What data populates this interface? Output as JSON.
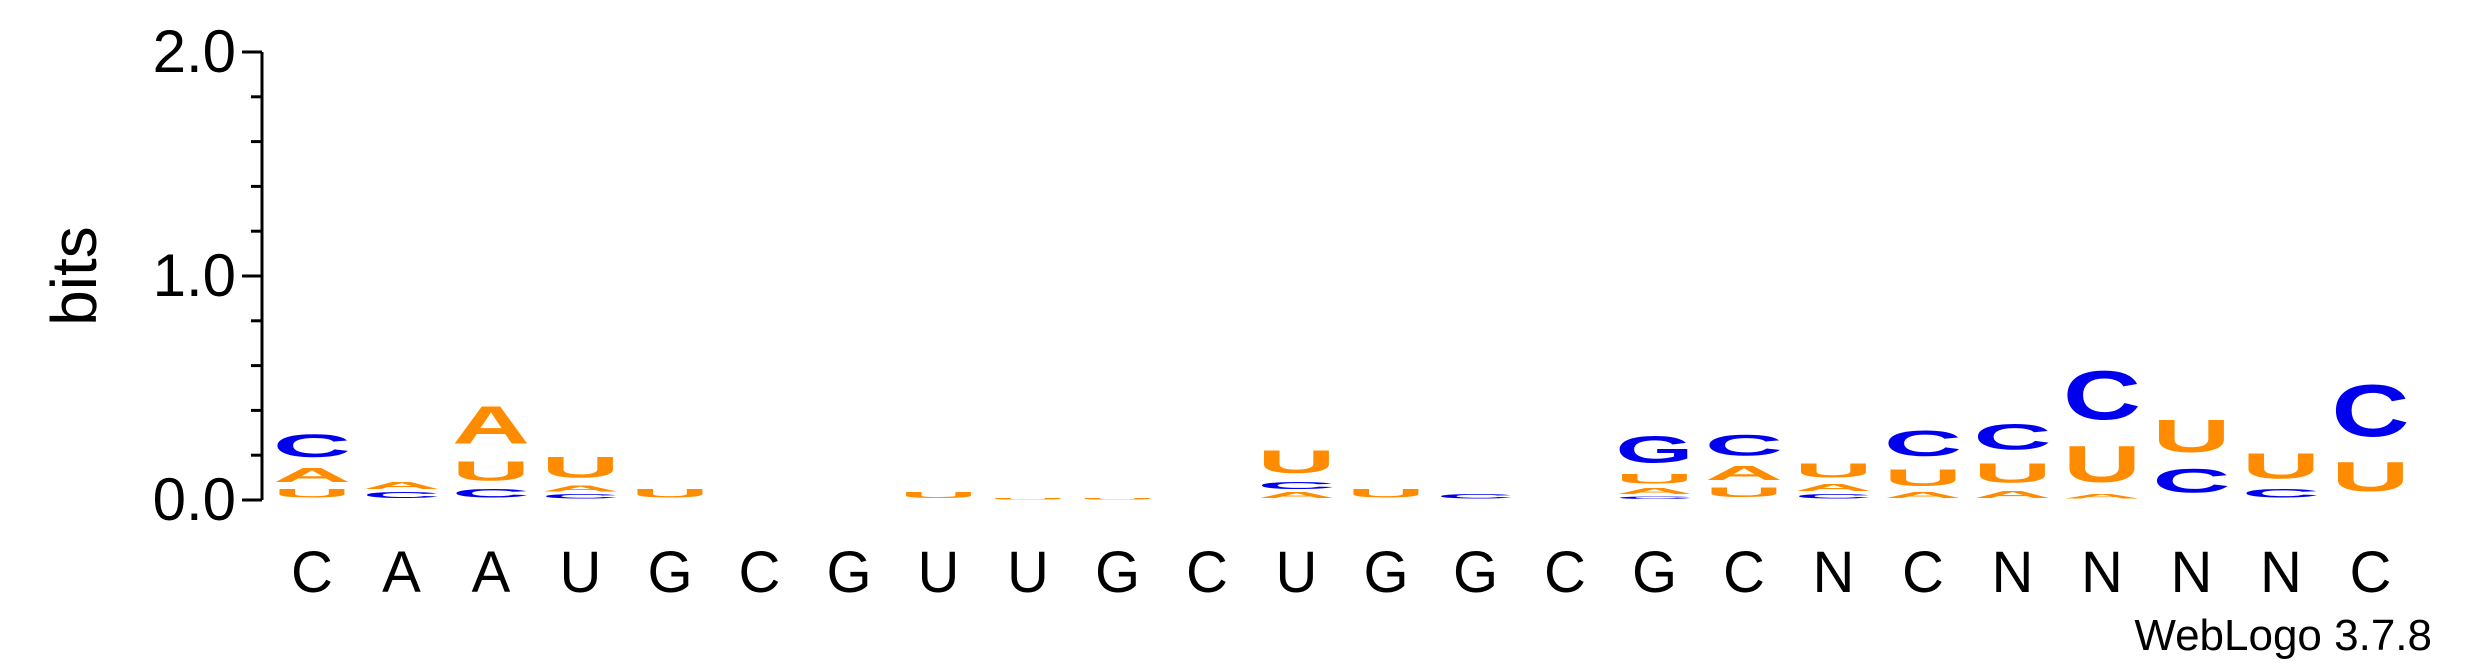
{
  "chart_data": {
    "type": "sequence-logo",
    "ylabel": "bits",
    "ylim": [
      0,
      2.0
    ],
    "y_ticks": [
      "0.0",
      "1.0",
      "2.0"
    ],
    "colors": {
      "A": "#ff8c00",
      "U": "#ff8c00",
      "C": "#0000ee",
      "G": "#0000ee"
    },
    "credit": "WebLogo 3.7.8",
    "positions": [
      {
        "label": "C",
        "stack": [
          [
            "U",
            0.06
          ],
          [
            "A",
            0.1
          ],
          [
            "C",
            0.16
          ]
        ]
      },
      {
        "label": "A",
        "stack": [
          [
            "C",
            0.04
          ],
          [
            "A",
            0.05
          ]
        ]
      },
      {
        "label": "A",
        "stack": [
          [
            "C",
            0.06
          ],
          [
            "U",
            0.14
          ],
          [
            "A",
            0.27
          ]
        ]
      },
      {
        "label": "U",
        "stack": [
          [
            "C",
            0.03
          ],
          [
            "A",
            0.04
          ],
          [
            "U",
            0.15
          ]
        ]
      },
      {
        "label": "G",
        "stack": [
          [
            "U",
            0.06
          ]
        ]
      },
      {
        "label": "C",
        "stack": []
      },
      {
        "label": "G",
        "stack": []
      },
      {
        "label": "U",
        "stack": [
          [
            "U",
            0.04
          ]
        ]
      },
      {
        "label": "U",
        "stack": [
          [
            "U",
            0.01
          ]
        ]
      },
      {
        "label": "G",
        "stack": [
          [
            "U",
            0.01
          ]
        ]
      },
      {
        "label": "C",
        "stack": []
      },
      {
        "label": "U",
        "stack": [
          [
            "A",
            0.04
          ],
          [
            "C",
            0.05
          ],
          [
            "U",
            0.16
          ]
        ]
      },
      {
        "label": "G",
        "stack": [
          [
            "U",
            0.06
          ]
        ]
      },
      {
        "label": "G",
        "stack": [
          [
            "C",
            0.03
          ]
        ]
      },
      {
        "label": "C",
        "stack": []
      },
      {
        "label": "G",
        "stack": [
          [
            "C",
            0.02
          ],
          [
            "A",
            0.04
          ],
          [
            "U",
            0.07
          ],
          [
            "G",
            0.19
          ]
        ]
      },
      {
        "label": "C",
        "stack": [
          [
            "U",
            0.07
          ],
          [
            "A",
            0.1
          ],
          [
            "C",
            0.15
          ]
        ]
      },
      {
        "label": "N",
        "stack": [
          [
            "C",
            0.03
          ],
          [
            "A",
            0.05
          ],
          [
            "U",
            0.1
          ]
        ]
      },
      {
        "label": "C",
        "stack": [
          [
            "A",
            0.04
          ],
          [
            "U",
            0.12
          ],
          [
            "C",
            0.18
          ]
        ]
      },
      {
        "label": "N",
        "stack": [
          [
            "A",
            0.05
          ],
          [
            "U",
            0.14
          ],
          [
            "C",
            0.18
          ]
        ]
      },
      {
        "label": "N",
        "stack": [
          [
            "A",
            0.03
          ],
          [
            "U",
            0.26
          ],
          [
            "C",
            0.35
          ]
        ]
      },
      {
        "label": "N",
        "stack": [
          [
            "C",
            0.17
          ],
          [
            "U",
            0.23
          ]
        ]
      },
      {
        "label": "N",
        "stack": [
          [
            "C",
            0.06
          ],
          [
            "U",
            0.18
          ]
        ]
      },
      {
        "label": "C",
        "stack": [
          [
            "U",
            0.21
          ],
          [
            "C",
            0.37
          ]
        ]
      }
    ]
  }
}
